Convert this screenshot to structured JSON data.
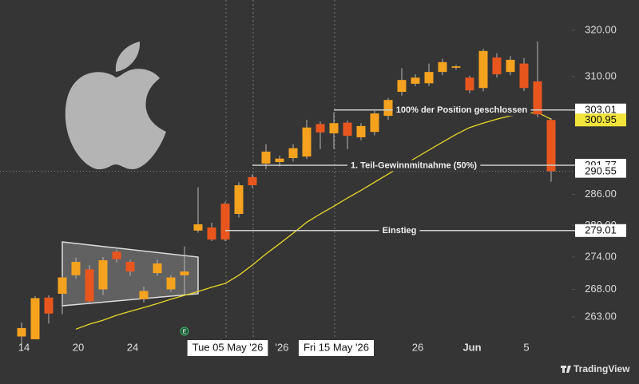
{
  "chart_data": {
    "type": "candlestick",
    "categories": [
      "14",
      null,
      null,
      null,
      "20",
      null,
      null,
      null,
      "24",
      null,
      null,
      null,
      null,
      null,
      null,
      "Tue 05 May '26",
      null,
      null,
      null,
      "'26",
      null,
      null,
      null,
      "Fri 15 May '26",
      null,
      null,
      null,
      null,
      null,
      "26",
      null,
      null,
      null,
      "Jun",
      null,
      null,
      null,
      "5",
      null,
      null
    ],
    "open": [
      259.5,
      259,
      266.5,
      267.2,
      270.6,
      271.7,
      268,
      275,
      273.1,
      266.2,
      271,
      268,
      270.6,
      279,
      279.6,
      284.2,
      282.2,
      289.4,
      292.1,
      292.4,
      293.2,
      293.5,
      300.1,
      298.2,
      300.4,
      297.4,
      298.5,
      301.8,
      306.8,
      308.5,
      308.6,
      311,
      311.9,
      309.8,
      307.6,
      314.1,
      311,
      312.8,
      309,
      300.95
    ],
    "high": [
      262,
      266.8,
      266.9,
      270.5,
      273.9,
      272.5,
      274,
      275.4,
      273.5,
      268.5,
      273.5,
      270.6,
      276,
      287.4,
      280.5,
      284.6,
      288.4,
      290,
      296,
      293.7,
      296,
      301,
      300.6,
      302.5,
      300.8,
      300.3,
      302.8,
      305.5,
      311.8,
      310.5,
      312.8,
      313.8,
      312.5,
      310.2,
      316,
      315,
      314.4,
      314,
      317.6,
      301.3
    ],
    "low": [
      258,
      259,
      261.8,
      263.5,
      270,
      265.3,
      267,
      273,
      270.5,
      265.6,
      270.5,
      267.5,
      267,
      278.6,
      277,
      277,
      281.5,
      287.3,
      291,
      291.5,
      292.5,
      293,
      295,
      295,
      295,
      296.8,
      297.8,
      301,
      306,
      308,
      308,
      310.3,
      311.5,
      306.5,
      306.9,
      309.8,
      310.3,
      307,
      301.5,
      288.5
    ],
    "close": [
      261,
      266.4,
      263.6,
      270.2,
      273.1,
      265.8,
      273.4,
      273.6,
      271.3,
      267.7,
      272.8,
      270.2,
      271.3,
      280.2,
      277.3,
      277.3,
      287.8,
      287.8,
      294.5,
      293.1,
      295.2,
      299.4,
      298.4,
      300.3,
      297.7,
      299.7,
      302.3,
      305.1,
      309.3,
      309.8,
      311,
      313.1,
      312.2,
      307.1,
      315.5,
      310.5,
      313.6,
      307.6,
      302.1,
      290.55
    ],
    "up_color": "#f5a21f",
    "down_color": "#e8561e",
    "moving_average": {
      "color": "#e8d82a",
      "values": [
        null,
        null,
        null,
        null,
        260.8,
        261.7,
        262.4,
        263.3,
        264.0,
        264.7,
        265.4,
        266.2,
        266.9,
        267.6,
        268.4,
        269.1,
        270.6,
        272.5,
        274.6,
        276.5,
        278.5,
        280.6,
        282.2,
        283.7,
        285.3,
        286.8,
        288.4,
        290.0,
        291.6,
        293.2,
        294.8,
        296.4,
        298.0,
        299.4,
        300.3,
        301.1,
        301.8,
        302.3,
        302.5,
        301.1
      ]
    },
    "ylim": [
      259,
      326.7
    ],
    "log_scale": true,
    "grid": false,
    "yticks": [
      {
        "value": 263,
        "label": "263.00"
      },
      {
        "value": 268,
        "label": "268.00"
      },
      {
        "value": 274,
        "label": "274.00"
      },
      {
        "value": 280,
        "label": "280.00"
      },
      {
        "value": 286,
        "label": "286.00"
      },
      {
        "value": 310,
        "label": "310.00"
      },
      {
        "value": 320,
        "label": "320.00"
      }
    ],
    "levels": [
      {
        "value": 303.01,
        "text": "100% der Position geschlossen"
      },
      {
        "value": 291.77,
        "text": "1. Teil-Gewinnmitnahme (50%)"
      },
      {
        "value": 279.01,
        "text": "Einstieg"
      }
    ],
    "price_markers": [
      {
        "value": 300.95,
        "color": "#f2e43a",
        "dotted": false
      },
      {
        "value": 290.55,
        "color": "#ffffff",
        "dotted": true
      }
    ],
    "event_marker": "E",
    "watermark": "TradingView"
  }
}
